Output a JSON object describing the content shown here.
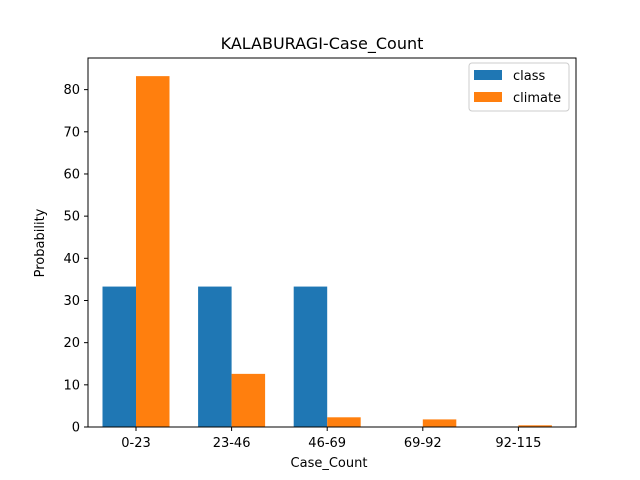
{
  "chart_data": {
    "type": "bar",
    "title": "KALABURAGI-Case_Count",
    "xlabel": "Case_Count",
    "ylabel": "Probability",
    "categories": [
      "0-23",
      "23-46",
      "46-69",
      "69-92",
      "92-115"
    ],
    "series": [
      {
        "name": "class",
        "color": "#1f77b4",
        "values": [
          33.3,
          33.3,
          33.3,
          0,
          0
        ]
      },
      {
        "name": "climate",
        "color": "#ff7f0e",
        "values": [
          83.2,
          12.6,
          2.3,
          1.8,
          0.4
        ]
      }
    ],
    "ylim": [
      0,
      87.5
    ],
    "yticks": [
      0,
      10,
      20,
      30,
      40,
      50,
      60,
      70,
      80
    ],
    "grid": false,
    "legend_position": "top-right"
  }
}
